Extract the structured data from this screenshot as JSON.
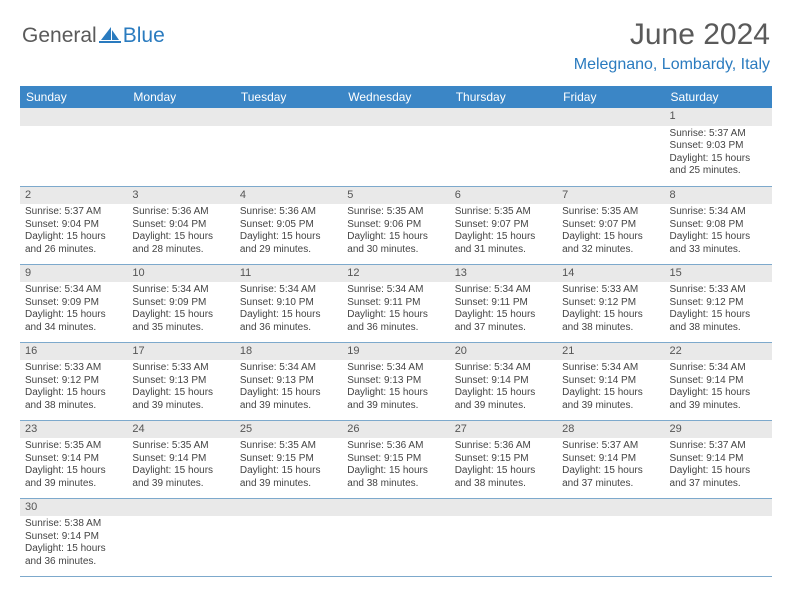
{
  "branding": {
    "word1": "General",
    "word2": "Blue",
    "icon_color": "#2a7bbf",
    "word1_color": "#5a5a5a",
    "word2_color": "#2a7bbf"
  },
  "title": {
    "month_year": "June 2024",
    "location": "Melegnano, Lombardy, Italy",
    "title_color": "#5a5a5a",
    "location_color": "#2a7bbf",
    "title_fontsize": 30,
    "location_fontsize": 16
  },
  "calendar": {
    "header_bg": "#3b86c6",
    "header_fg": "#ffffff",
    "daynum_bg": "#e9e9e9",
    "cell_border": "#7da9cc",
    "day_names": [
      "Sunday",
      "Monday",
      "Tuesday",
      "Wednesday",
      "Thursday",
      "Friday",
      "Saturday"
    ],
    "weeks": [
      [
        null,
        null,
        null,
        null,
        null,
        null,
        {
          "n": "1",
          "sr": "Sunrise: 5:37 AM",
          "ss": "Sunset: 9:03 PM",
          "dl": "Daylight: 15 hours and 25 minutes."
        }
      ],
      [
        {
          "n": "2",
          "sr": "Sunrise: 5:37 AM",
          "ss": "Sunset: 9:04 PM",
          "dl": "Daylight: 15 hours and 26 minutes."
        },
        {
          "n": "3",
          "sr": "Sunrise: 5:36 AM",
          "ss": "Sunset: 9:04 PM",
          "dl": "Daylight: 15 hours and 28 minutes."
        },
        {
          "n": "4",
          "sr": "Sunrise: 5:36 AM",
          "ss": "Sunset: 9:05 PM",
          "dl": "Daylight: 15 hours and 29 minutes."
        },
        {
          "n": "5",
          "sr": "Sunrise: 5:35 AM",
          "ss": "Sunset: 9:06 PM",
          "dl": "Daylight: 15 hours and 30 minutes."
        },
        {
          "n": "6",
          "sr": "Sunrise: 5:35 AM",
          "ss": "Sunset: 9:07 PM",
          "dl": "Daylight: 15 hours and 31 minutes."
        },
        {
          "n": "7",
          "sr": "Sunrise: 5:35 AM",
          "ss": "Sunset: 9:07 PM",
          "dl": "Daylight: 15 hours and 32 minutes."
        },
        {
          "n": "8",
          "sr": "Sunrise: 5:34 AM",
          "ss": "Sunset: 9:08 PM",
          "dl": "Daylight: 15 hours and 33 minutes."
        }
      ],
      [
        {
          "n": "9",
          "sr": "Sunrise: 5:34 AM",
          "ss": "Sunset: 9:09 PM",
          "dl": "Daylight: 15 hours and 34 minutes."
        },
        {
          "n": "10",
          "sr": "Sunrise: 5:34 AM",
          "ss": "Sunset: 9:09 PM",
          "dl": "Daylight: 15 hours and 35 minutes."
        },
        {
          "n": "11",
          "sr": "Sunrise: 5:34 AM",
          "ss": "Sunset: 9:10 PM",
          "dl": "Daylight: 15 hours and 36 minutes."
        },
        {
          "n": "12",
          "sr": "Sunrise: 5:34 AM",
          "ss": "Sunset: 9:11 PM",
          "dl": "Daylight: 15 hours and 36 minutes."
        },
        {
          "n": "13",
          "sr": "Sunrise: 5:34 AM",
          "ss": "Sunset: 9:11 PM",
          "dl": "Daylight: 15 hours and 37 minutes."
        },
        {
          "n": "14",
          "sr": "Sunrise: 5:33 AM",
          "ss": "Sunset: 9:12 PM",
          "dl": "Daylight: 15 hours and 38 minutes."
        },
        {
          "n": "15",
          "sr": "Sunrise: 5:33 AM",
          "ss": "Sunset: 9:12 PM",
          "dl": "Daylight: 15 hours and 38 minutes."
        }
      ],
      [
        {
          "n": "16",
          "sr": "Sunrise: 5:33 AM",
          "ss": "Sunset: 9:12 PM",
          "dl": "Daylight: 15 hours and 38 minutes."
        },
        {
          "n": "17",
          "sr": "Sunrise: 5:33 AM",
          "ss": "Sunset: 9:13 PM",
          "dl": "Daylight: 15 hours and 39 minutes."
        },
        {
          "n": "18",
          "sr": "Sunrise: 5:34 AM",
          "ss": "Sunset: 9:13 PM",
          "dl": "Daylight: 15 hours and 39 minutes."
        },
        {
          "n": "19",
          "sr": "Sunrise: 5:34 AM",
          "ss": "Sunset: 9:13 PM",
          "dl": "Daylight: 15 hours and 39 minutes."
        },
        {
          "n": "20",
          "sr": "Sunrise: 5:34 AM",
          "ss": "Sunset: 9:14 PM",
          "dl": "Daylight: 15 hours and 39 minutes."
        },
        {
          "n": "21",
          "sr": "Sunrise: 5:34 AM",
          "ss": "Sunset: 9:14 PM",
          "dl": "Daylight: 15 hours and 39 minutes."
        },
        {
          "n": "22",
          "sr": "Sunrise: 5:34 AM",
          "ss": "Sunset: 9:14 PM",
          "dl": "Daylight: 15 hours and 39 minutes."
        }
      ],
      [
        {
          "n": "23",
          "sr": "Sunrise: 5:35 AM",
          "ss": "Sunset: 9:14 PM",
          "dl": "Daylight: 15 hours and 39 minutes."
        },
        {
          "n": "24",
          "sr": "Sunrise: 5:35 AM",
          "ss": "Sunset: 9:14 PM",
          "dl": "Daylight: 15 hours and 39 minutes."
        },
        {
          "n": "25",
          "sr": "Sunrise: 5:35 AM",
          "ss": "Sunset: 9:15 PM",
          "dl": "Daylight: 15 hours and 39 minutes."
        },
        {
          "n": "26",
          "sr": "Sunrise: 5:36 AM",
          "ss": "Sunset: 9:15 PM",
          "dl": "Daylight: 15 hours and 38 minutes."
        },
        {
          "n": "27",
          "sr": "Sunrise: 5:36 AM",
          "ss": "Sunset: 9:15 PM",
          "dl": "Daylight: 15 hours and 38 minutes."
        },
        {
          "n": "28",
          "sr": "Sunrise: 5:37 AM",
          "ss": "Sunset: 9:14 PM",
          "dl": "Daylight: 15 hours and 37 minutes."
        },
        {
          "n": "29",
          "sr": "Sunrise: 5:37 AM",
          "ss": "Sunset: 9:14 PM",
          "dl": "Daylight: 15 hours and 37 minutes."
        }
      ],
      [
        {
          "n": "30",
          "sr": "Sunrise: 5:38 AM",
          "ss": "Sunset: 9:14 PM",
          "dl": "Daylight: 15 hours and 36 minutes."
        },
        null,
        null,
        null,
        null,
        null,
        null
      ]
    ]
  }
}
